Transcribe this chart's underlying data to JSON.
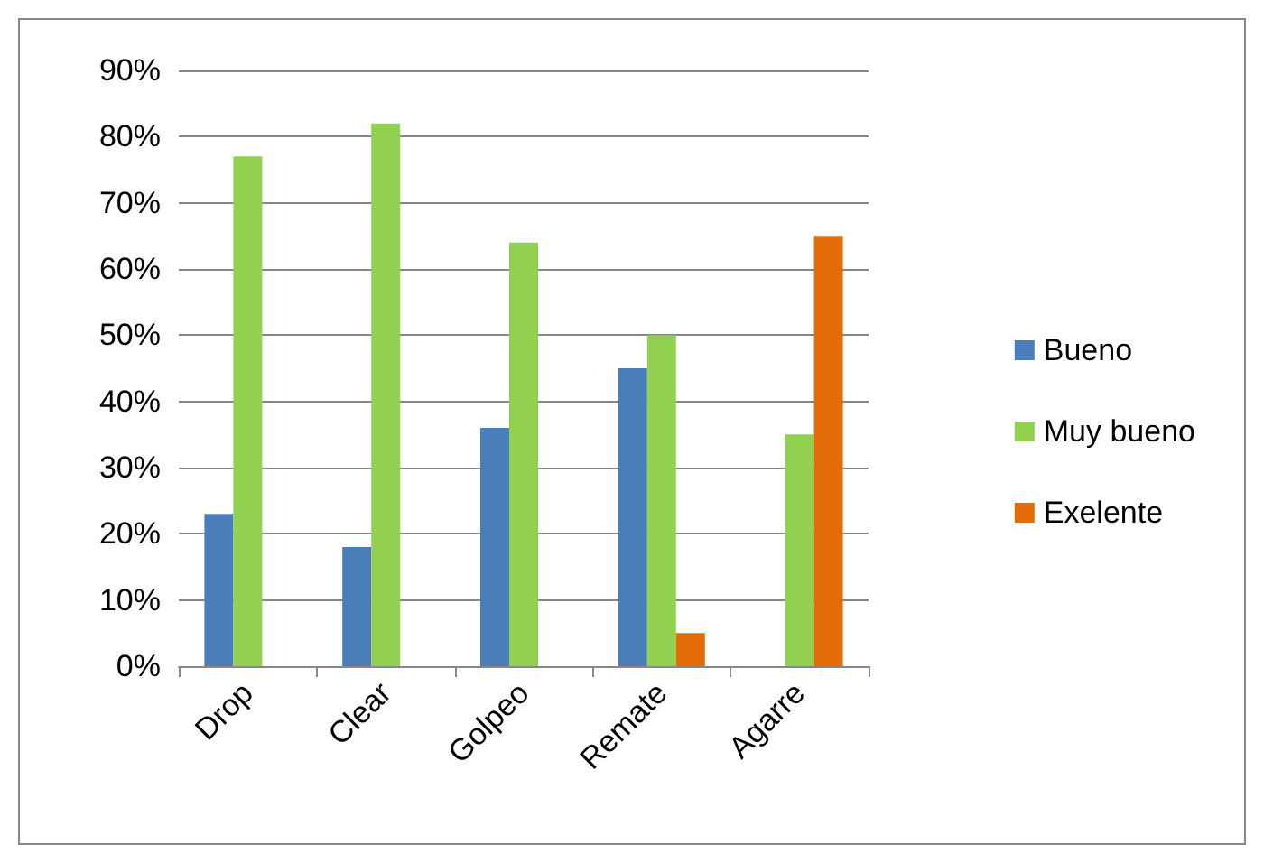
{
  "chart_data": {
    "type": "bar",
    "categories": [
      "Drop",
      "Clear",
      "Golpeo",
      "Remate",
      "Agarre"
    ],
    "series": [
      {
        "name": "Bueno",
        "color": "#4a7ebb",
        "values": [
          23,
          18,
          36,
          45,
          null
        ]
      },
      {
        "name": "Muy bueno",
        "color": "#92d050",
        "values": [
          77,
          82,
          64,
          50,
          35
        ]
      },
      {
        "name": "Exelente",
        "color": "#e36c09",
        "values": [
          null,
          null,
          null,
          5,
          65
        ]
      }
    ],
    "ylim": [
      0,
      90
    ],
    "yticks": [
      {
        "value": 0,
        "label": "0%"
      },
      {
        "value": 10,
        "label": "10%"
      },
      {
        "value": 20,
        "label": "20%"
      },
      {
        "value": 30,
        "label": "30%"
      },
      {
        "value": 40,
        "label": "40%"
      },
      {
        "value": 50,
        "label": "50%"
      },
      {
        "value": 60,
        "label": "60%"
      },
      {
        "value": 70,
        "label": "70%"
      },
      {
        "value": 80,
        "label": "80%"
      },
      {
        "value": 90,
        "label": "90%"
      }
    ],
    "grid": "y",
    "legend": "right"
  }
}
